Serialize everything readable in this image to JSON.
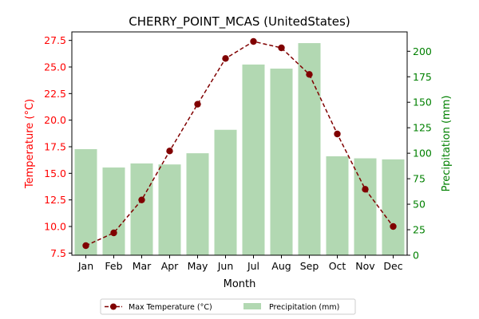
{
  "chart_data": {
    "type": "bar+line",
    "title": "CHERRY_POINT_MCAS (UnitedStates)",
    "xlabel": "Month",
    "categories": [
      "Jan",
      "Feb",
      "Mar",
      "Apr",
      "May",
      "Jun",
      "Jul",
      "Aug",
      "Sep",
      "Oct",
      "Nov",
      "Dec"
    ],
    "y_left": {
      "label": "Temperature (°C)",
      "color": "#ff0000",
      "ylim": [
        7.3,
        28.3
      ],
      "ticks": [
        7.5,
        10.0,
        12.5,
        15.0,
        17.5,
        20.0,
        22.5,
        25.0,
        27.5
      ],
      "tick_labels": [
        "7.5",
        "10.0",
        "12.5",
        "15.0",
        "17.5",
        "20.0",
        "22.5",
        "25.0",
        "27.5"
      ]
    },
    "y_right": {
      "label": "Precipitation (mm)",
      "color": "#008000",
      "ylim": [
        0,
        219
      ],
      "ticks": [
        0,
        25,
        50,
        75,
        100,
        125,
        150,
        175,
        200
      ],
      "tick_labels": [
        "0",
        "25",
        "50",
        "75",
        "100",
        "125",
        "150",
        "175",
        "200"
      ]
    },
    "series": [
      {
        "name": "Max Temperature (°C)",
        "kind": "line",
        "axis": "left",
        "color": "#800000",
        "values": [
          8.2,
          9.4,
          12.5,
          17.1,
          21.5,
          25.8,
          27.4,
          26.8,
          24.3,
          18.7,
          13.5,
          10.0
        ]
      },
      {
        "name": "Precipitation (mm)",
        "kind": "bar",
        "axis": "right",
        "color": "#b2d8b2",
        "values": [
          104,
          86,
          90,
          89,
          100,
          123,
          187,
          183,
          208,
          97,
          95,
          94
        ]
      }
    ],
    "grid": false,
    "legend_placement": "bottom-center"
  }
}
